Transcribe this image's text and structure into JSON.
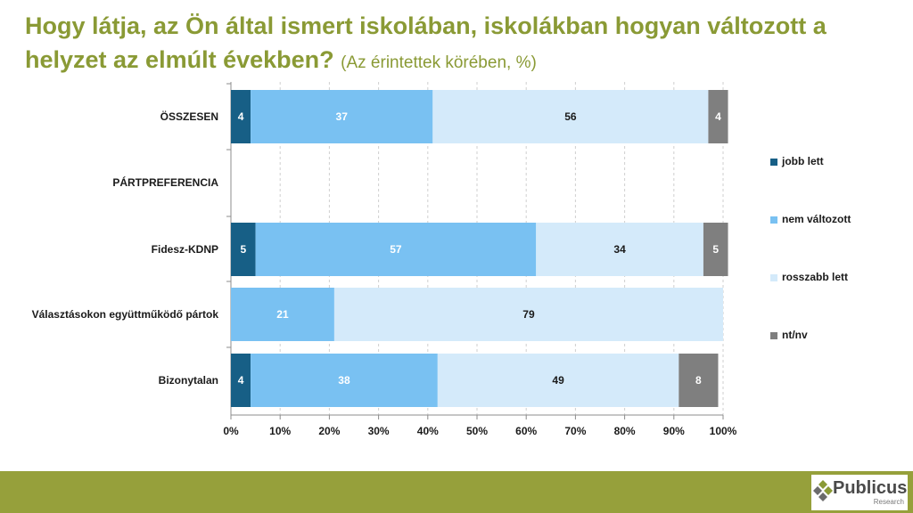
{
  "title": {
    "main": "Hogy látja, az Ön által ismert iskolában, iskolákban hogyan változott a helyzet az elmúlt években?",
    "sub": "(Az érintettek körében, %)"
  },
  "chart_data": {
    "type": "bar",
    "orientation": "horizontal-stacked-100",
    "categories": [
      "ÖSSZESEN",
      "PÁRTPREFERENCIA",
      "Fidesz-KDNP",
      "Választásokon együttműködő pártok",
      "Bizonytalan"
    ],
    "series": [
      {
        "name": "jobb lett",
        "color": "#175f86",
        "label_color": "#ffffff",
        "values": [
          4,
          null,
          5,
          0,
          4
        ]
      },
      {
        "name": "nem változott",
        "color": "#79c1f2",
        "label_color": "#ffffff",
        "values": [
          37,
          null,
          57,
          21,
          38
        ]
      },
      {
        "name": "rosszabb lett",
        "color": "#d4eafa",
        "label_color": "#1a1a1a",
        "values": [
          56,
          null,
          34,
          79,
          49
        ]
      },
      {
        "name": "nt/nv",
        "color": "#7f7f7f",
        "label_color": "#ffffff",
        "values": [
          4,
          null,
          5,
          0,
          8
        ]
      }
    ],
    "x_ticks": [
      "0%",
      "10%",
      "20%",
      "30%",
      "40%",
      "50%",
      "60%",
      "70%",
      "80%",
      "90%",
      "100%"
    ],
    "xlim": [
      0,
      100
    ],
    "grid": "vertical dashed",
    "legend": "right"
  },
  "footer": {
    "logo_name": "Publicus",
    "logo_tag": "Research"
  }
}
